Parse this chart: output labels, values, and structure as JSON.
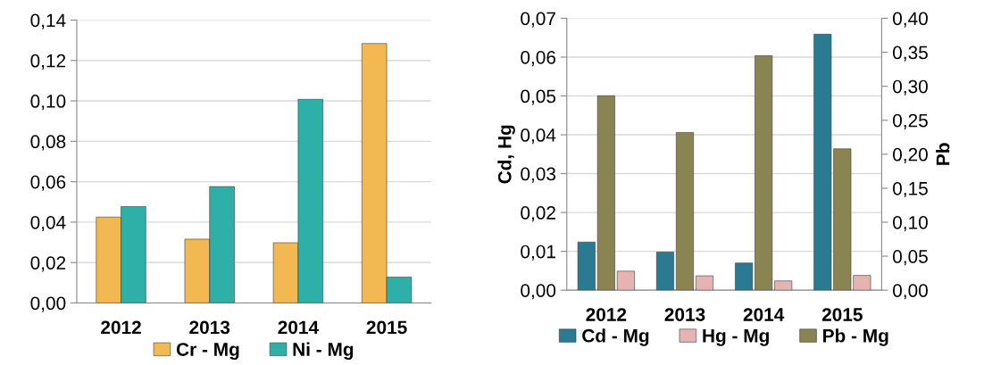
{
  "chart_data": [
    {
      "type": "bar",
      "categories": [
        "2012",
        "2013",
        "2014",
        "2015"
      ],
      "series": [
        {
          "name": "Cr - Mg",
          "color": "#f2b851",
          "values": [
            0.0425,
            0.0316,
            0.0298,
            0.1284
          ]
        },
        {
          "name": "Ni - Mg",
          "color": "#2eb0a8",
          "values": [
            0.0477,
            0.0576,
            0.1008,
            0.0128
          ]
        }
      ],
      "ylim": [
        0,
        0.14
      ],
      "yticks": [
        {
          "value": 0,
          "label": "0,00"
        },
        {
          "value": 0.02,
          "label": "0,02"
        },
        {
          "value": 0.04,
          "label": "0,04"
        },
        {
          "value": 0.06,
          "label": "0,06"
        },
        {
          "value": 0.08,
          "label": "0,08"
        },
        {
          "value": 0.1,
          "label": "0,10"
        },
        {
          "value": 0.12,
          "label": "0,12"
        },
        {
          "value": 0.14,
          "label": "0,14"
        }
      ],
      "grid": "y",
      "legend": "bottom"
    },
    {
      "type": "bar",
      "categories": [
        "2012",
        "2013",
        "2014",
        "2015"
      ],
      "ylabel": "Cd, Hg",
      "y2label": "Pb",
      "series": [
        {
          "name": "Cd - Mg",
          "color": "#2a7a92",
          "values": [
            0.0124,
            0.0098,
            0.007,
            0.0659
          ]
        },
        {
          "name": "Hg - Mg",
          "color": "#e6b3b3",
          "values": [
            0.0049,
            0.0037,
            0.0024,
            0.0038
          ]
        },
        {
          "name": "Pb - Mg",
          "color": "#8a8452",
          "axis": "y2",
          "values": [
            0.286,
            0.232,
            0.345,
            0.208
          ]
        }
      ],
      "ylim": [
        0,
        0.07
      ],
      "yticks": [
        {
          "value": 0,
          "label": "0,00"
        },
        {
          "value": 0.01,
          "label": "0,01"
        },
        {
          "value": 0.02,
          "label": "0,02"
        },
        {
          "value": 0.03,
          "label": "0,03"
        },
        {
          "value": 0.04,
          "label": "0,04"
        },
        {
          "value": 0.05,
          "label": "0,05"
        },
        {
          "value": 0.06,
          "label": "0,06"
        },
        {
          "value": 0.07,
          "label": "0,07"
        }
      ],
      "y2lim": [
        0,
        0.4
      ],
      "y2ticks": [
        {
          "value": 0,
          "label": "0,00"
        },
        {
          "value": 0.05,
          "label": "0,05"
        },
        {
          "value": 0.1,
          "label": "0,10"
        },
        {
          "value": 0.15,
          "label": "0,15"
        },
        {
          "value": 0.2,
          "label": "0,20"
        },
        {
          "value": 0.25,
          "label": "0,25"
        },
        {
          "value": 0.3,
          "label": "0,30"
        },
        {
          "value": 0.35,
          "label": "0,35"
        },
        {
          "value": 0.4,
          "label": "0,40"
        }
      ],
      "grid": "y",
      "legend": "bottom"
    }
  ]
}
